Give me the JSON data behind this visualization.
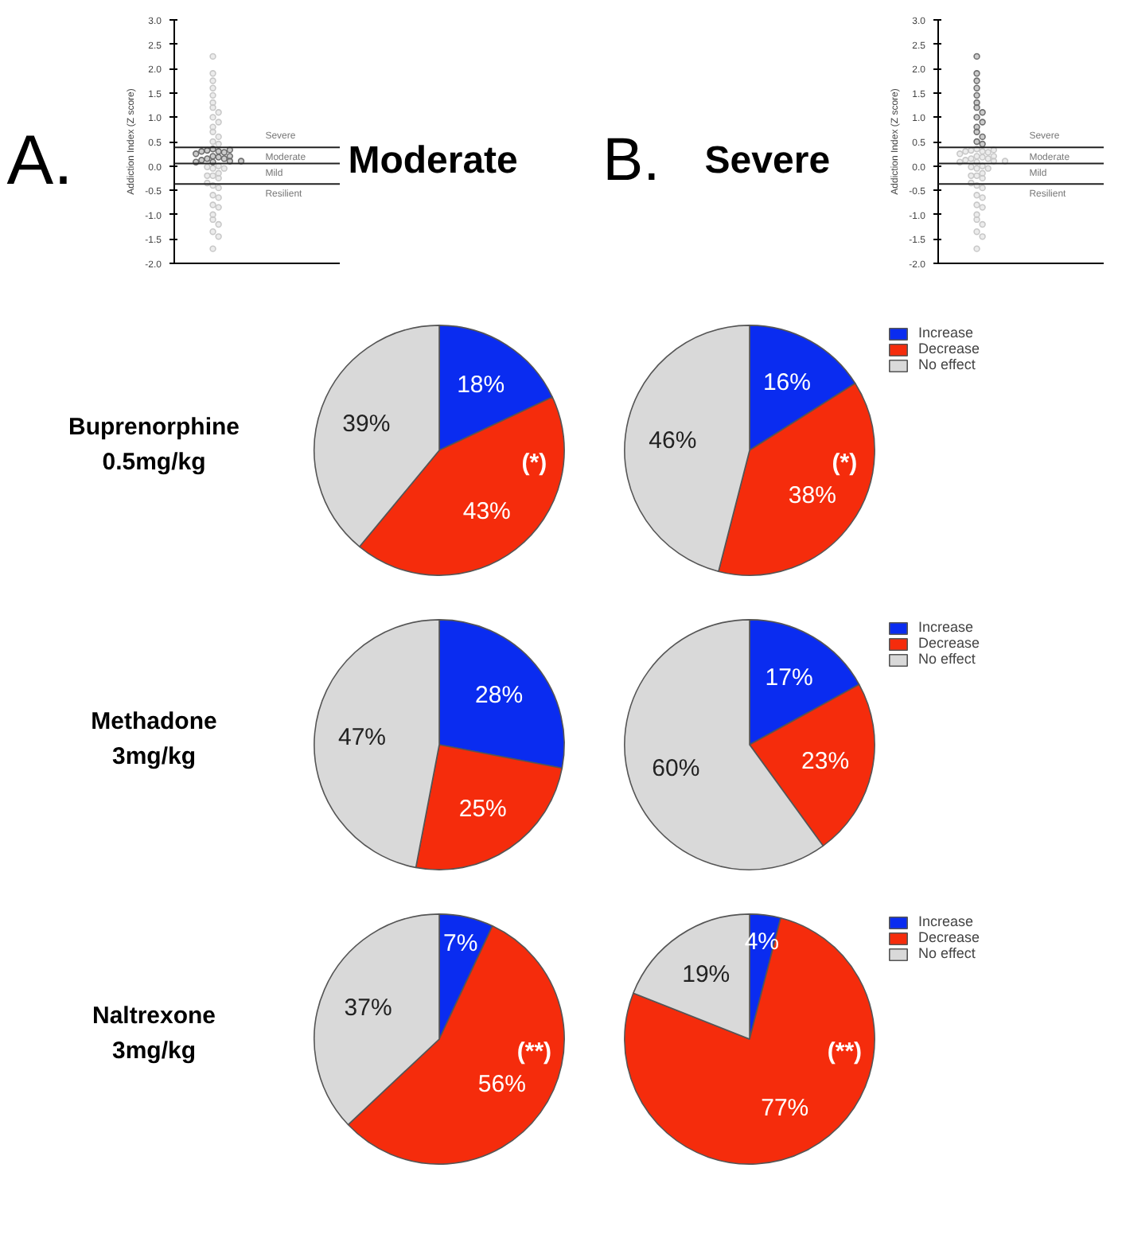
{
  "chart_data": [
    {
      "type": "scatter",
      "title": "A.",
      "subtitle": "Moderate",
      "ylabel": "Addiction Index (Z score)",
      "categories": [
        null
      ],
      "ylim": [
        -2,
        3
      ],
      "yticks": [
        {
          "value": -2,
          "label": "-2.0"
        },
        {
          "value": -1.5,
          "label": "-1.5"
        },
        {
          "value": -1,
          "label": "-1.0"
        },
        {
          "value": -0.5,
          "label": "-0.5"
        },
        {
          "value": 0,
          "label": "0.0"
        },
        {
          "value": 0.5,
          "label": "0.5"
        },
        {
          "value": 1,
          "label": "1.0"
        },
        {
          "value": 1.5,
          "label": "1.5"
        },
        {
          "value": 2,
          "label": "2.0"
        },
        {
          "value": 2.5,
          "label": "2.5"
        },
        {
          "value": 3,
          "label": "3.0"
        }
      ],
      "tick_labels": "y",
      "marker": "circle",
      "series": [
        {
          "color": "#c8c8c8",
          "x": [
            null,
            null,
            null,
            null,
            null,
            null,
            null,
            null,
            null,
            null,
            null,
            null,
            null,
            null,
            null,
            null,
            null,
            null,
            null,
            null,
            null,
            null,
            null,
            null,
            null,
            null,
            null,
            null,
            null,
            null,
            null,
            null,
            null,
            null,
            null,
            null
          ],
          "values": [
            2.25,
            1.9,
            1.75,
            1.6,
            1.45,
            1.3,
            1.2,
            1.1,
            1.0,
            0.9,
            0.8,
            0.7,
            0.6,
            0.5,
            0.45,
            -0.05,
            0,
            -0.02,
            -0.05,
            -0.2,
            -0.15,
            -0.2,
            -0.25,
            -0.4,
            -0.35,
            -0.45,
            -0.6,
            -0.65,
            -0.8,
            -0.85,
            -1.0,
            -1.1,
            -1.2,
            -1.35,
            -1.45,
            -1.7
          ]
        },
        {
          "color": "#6e6e6e",
          "x": [
            null,
            null,
            null,
            null,
            null,
            null,
            null,
            null,
            null,
            null,
            null,
            null,
            null,
            null,
            null,
            null,
            null
          ],
          "values": [
            0.35,
            0.3,
            0.32,
            0.28,
            0.3,
            0.33,
            0.25,
            0.2,
            0.18,
            0.15,
            0.2,
            0.15,
            0.12,
            0.08,
            0.1,
            0.08,
            0.1
          ]
        }
      ],
      "ref_lines": [
        {
          "axis": "y",
          "value": 0.38
        },
        {
          "axis": "y",
          "value": 0.05
        },
        {
          "axis": "y",
          "value": -0.37
        }
      ],
      "annotations": [
        "Severe",
        "Moderate",
        "Mild",
        "Resilient"
      ]
    },
    {
      "type": "scatter",
      "title": "B.",
      "subtitle": "Severe",
      "ylabel": "Addiction Index (Z score)",
      "categories": [
        null
      ],
      "ylim": [
        -2,
        3
      ],
      "yticks": [
        {
          "value": -2,
          "label": "-2.0"
        },
        {
          "value": -1.5,
          "label": "-1.5"
        },
        {
          "value": -1,
          "label": "-1.0"
        },
        {
          "value": -0.5,
          "label": "-0.5"
        },
        {
          "value": 0,
          "label": "0.0"
        },
        {
          "value": 0.5,
          "label": "0.5"
        },
        {
          "value": 1,
          "label": "1.0"
        },
        {
          "value": 1.5,
          "label": "1.5"
        },
        {
          "value": 2,
          "label": "2.0"
        },
        {
          "value": 2.5,
          "label": "2.5"
        },
        {
          "value": 3,
          "label": "3.0"
        }
      ],
      "tick_labels": "y",
      "marker": "circle",
      "series": [
        {
          "color": "#c8c8c8",
          "x": [
            null,
            null,
            null,
            null,
            null,
            null,
            null,
            null,
            null,
            null,
            null,
            null,
            null,
            null,
            null,
            null,
            null,
            null,
            null,
            null,
            null,
            null,
            null,
            null,
            null,
            null,
            null,
            null,
            null,
            null,
            null,
            null,
            null,
            null,
            null,
            null,
            null,
            null
          ],
          "values": [
            0.35,
            0.3,
            0.32,
            0.28,
            0.3,
            0.33,
            0.25,
            0.2,
            0.18,
            0.15,
            0.2,
            0.15,
            0.12,
            0.08,
            0.1,
            0.08,
            0.1,
            -0.05,
            0,
            -0.02,
            -0.05,
            -0.2,
            -0.15,
            -0.2,
            -0.25,
            -0.4,
            -0.35,
            -0.45,
            -0.6,
            -0.65,
            -0.8,
            -0.85,
            -1.0,
            -1.1,
            -1.2,
            -1.35,
            -1.45,
            -1.7
          ]
        },
        {
          "color": "#6e6e6e",
          "x": [
            null,
            null,
            null,
            null,
            null,
            null,
            null,
            null,
            null,
            null,
            null,
            null,
            null,
            null,
            null
          ],
          "values": [
            2.25,
            1.9,
            1.75,
            1.6,
            1.45,
            1.3,
            1.2,
            1.1,
            1.0,
            0.9,
            0.8,
            0.7,
            0.6,
            0.5,
            0.45
          ]
        }
      ],
      "ref_lines": [
        {
          "axis": "y",
          "value": 0.38
        },
        {
          "axis": "y",
          "value": 0.05
        },
        {
          "axis": "y",
          "value": -0.37
        }
      ],
      "annotations": [
        "Severe",
        "Moderate",
        "Mild",
        "Resilient"
      ]
    },
    {
      "type": "pie",
      "ylabel": "Buprenorphine\n0.5mg/kg",
      "categories": [
        null,
        null,
        null
      ],
      "values": [
        18,
        43,
        39
      ],
      "colors": [
        "#0a2cf0",
        "#f52c0c",
        "#d9d9d9"
      ],
      "value_labels": [
        "18%",
        "43%",
        "39%"
      ],
      "annotations": [
        "(*)"
      ]
    },
    {
      "type": "pie",
      "categories": [
        "Increase",
        "Decrease",
        "No effect"
      ],
      "values": [
        16,
        38,
        46
      ],
      "colors": [
        "#0a2cf0",
        "#f52c0c",
        "#d9d9d9"
      ],
      "value_labels": [
        "16%",
        "38%",
        "46%"
      ],
      "annotations": [
        "(*)"
      ],
      "legend": "right"
    },
    {
      "type": "pie",
      "ylabel": "Methadone\n3mg/kg",
      "categories": [
        null,
        null,
        null
      ],
      "values": [
        28,
        25,
        47
      ],
      "colors": [
        "#0a2cf0",
        "#f52c0c",
        "#d9d9d9"
      ],
      "value_labels": [
        "28%",
        "25%",
        "47%"
      ]
    },
    {
      "type": "pie",
      "categories": [
        "Increase",
        "Decrease",
        "No effect"
      ],
      "values": [
        17,
        23,
        60
      ],
      "colors": [
        "#0a2cf0",
        "#f52c0c",
        "#d9d9d9"
      ],
      "value_labels": [
        "17%",
        "23%",
        "60%"
      ],
      "legend": "right"
    },
    {
      "type": "pie",
      "ylabel": "Naltrexone\n3mg/kg",
      "categories": [
        null,
        null,
        null
      ],
      "values": [
        7,
        56,
        37
      ],
      "colors": [
        "#0a2cf0",
        "#f52c0c",
        "#d9d9d9"
      ],
      "value_labels": [
        "7%",
        "56%",
        "37%"
      ],
      "annotations": [
        "(**)"
      ]
    },
    {
      "type": "pie",
      "categories": [
        "Increase",
        "Decrease",
        "No effect"
      ],
      "values": [
        4,
        77,
        19
      ],
      "colors": [
        "#0a2cf0",
        "#f52c0c",
        "#d9d9d9"
      ],
      "value_labels": [
        "4%",
        "77%",
        "19%"
      ],
      "annotations": [
        "(**)"
      ],
      "legend": "right"
    }
  ]
}
